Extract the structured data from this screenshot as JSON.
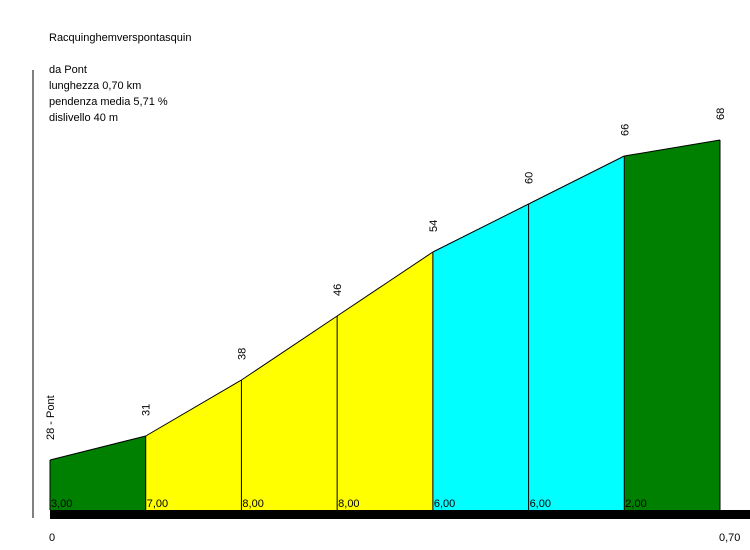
{
  "title": "Racquinghemverspontasquin",
  "info": {
    "start": "da Pont",
    "length": "lunghezza 0,70 km",
    "avg_gradient": "pendenza media 5,71 %",
    "elevation_gain": "dislivello 40 m"
  },
  "chart_data": {
    "type": "area",
    "title": "Racquinghemverspontasquin",
    "x_unit": "km",
    "xlim": [
      0,
      0.7
    ],
    "x_tick_labels": [
      "0",
      "0,70"
    ],
    "distances_km": [
      0,
      0.1,
      0.2,
      0.3,
      0.4,
      0.5,
      0.6,
      0.7
    ],
    "elevations_m": [
      28,
      31,
      38,
      46,
      54,
      60,
      66,
      68
    ],
    "elevation_labels": [
      "28 - Pont",
      "31",
      "38",
      "46",
      "54",
      "60",
      "66",
      "68"
    ],
    "segment_gradients": [
      "3,00",
      "7,00",
      "8,00",
      "8,00",
      "6,00",
      "6,00",
      "2,00"
    ],
    "segment_colors": [
      "#008000",
      "#ffff00",
      "#ffff00",
      "#ffff00",
      "#00ffff",
      "#00ffff",
      "#008000"
    ],
    "base_bar_color": "#000000"
  }
}
